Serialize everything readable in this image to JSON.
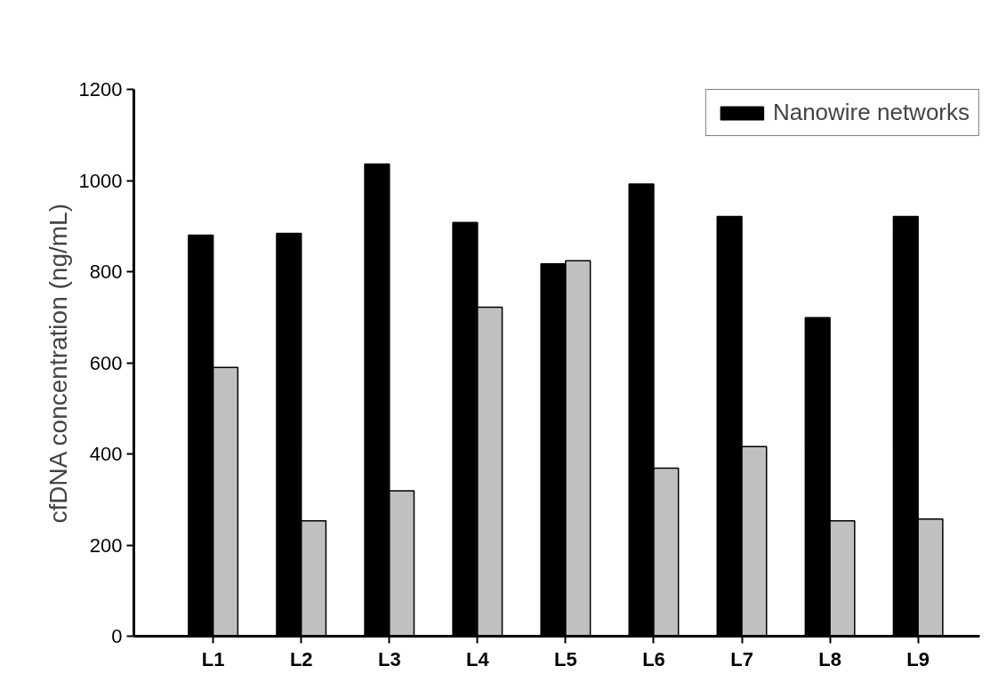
{
  "chart_data": {
    "type": "bar",
    "ylabel": "cfDNA concentration (ng/mL)",
    "categories": [
      "L1",
      "L2",
      "L3",
      "L4",
      "L5",
      "L6",
      "L7",
      "L8",
      "L9"
    ],
    "series": [
      {
        "name": "Nanowire networks",
        "color": "#000000",
        "values": [
          880,
          884,
          1036,
          908,
          817,
          992,
          921,
          699,
          921
        ]
      },
      {
        "color": "#c0c0c0",
        "values": [
          590,
          253,
          319,
          722,
          824,
          369,
          416,
          253,
          257
        ]
      }
    ],
    "ylim": [
      0,
      1200
    ],
    "yticks": [
      0,
      200,
      400,
      600,
      800,
      1000,
      1200
    ],
    "grid": false,
    "legend": "top right"
  }
}
